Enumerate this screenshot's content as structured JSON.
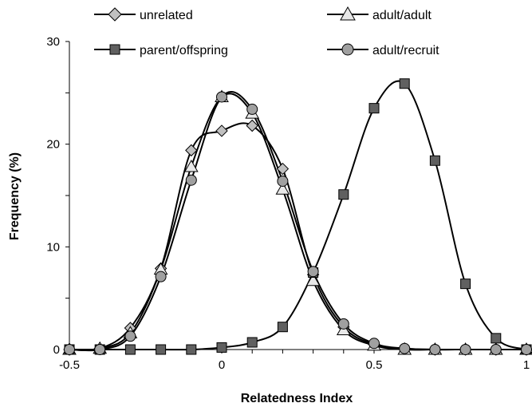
{
  "chart_data": {
    "type": "line",
    "xlabel": "Relatedness Index",
    "ylabel": "Frequency (%)",
    "xlim": [
      -0.5,
      1
    ],
    "ylim": [
      0,
      30
    ],
    "x_ticks": [
      "-0.5",
      "0",
      "0.5",
      "1"
    ],
    "y_ticks": [
      "0",
      "10",
      "20",
      "30"
    ],
    "grid": false,
    "legend_position": "top",
    "x": [
      -0.5,
      -0.4,
      -0.3,
      -0.2,
      -0.1,
      0,
      0.1,
      0.2,
      0.3,
      0.4,
      0.5,
      0.6,
      0.7,
      0.8,
      0.9,
      1.0
    ],
    "series": [
      {
        "name": "unrelated",
        "marker": "diamond",
        "fill": "#c0c0c0",
        "values": [
          0,
          0.1,
          2.1,
          7.9,
          19.4,
          21.3,
          21.8,
          17.6,
          7.3,
          2.2,
          0.5,
          0.1,
          0,
          0,
          0,
          0
        ]
      },
      {
        "name": "adult/adult",
        "marker": "triangle",
        "fill": "#e8e8e8",
        "values": [
          0,
          0.1,
          1.6,
          7.8,
          17.8,
          24.6,
          23.0,
          15.6,
          6.7,
          1.9,
          0.4,
          0,
          0,
          0,
          0,
          0
        ]
      },
      {
        "name": "parent/offspring",
        "marker": "square",
        "fill": "#606060",
        "values": [
          0,
          0,
          0,
          0,
          0,
          0.2,
          0.7,
          2.2,
          7.5,
          15.1,
          23.5,
          25.9,
          18.4,
          6.4,
          1.1,
          0
        ]
      },
      {
        "name": "adult/recruit",
        "marker": "circle",
        "fill": "#a0a0a0",
        "values": [
          0,
          0,
          1.3,
          7.1,
          16.5,
          24.6,
          23.4,
          16.4,
          7.6,
          2.5,
          0.6,
          0.1,
          0,
          0,
          0,
          0
        ]
      }
    ]
  }
}
